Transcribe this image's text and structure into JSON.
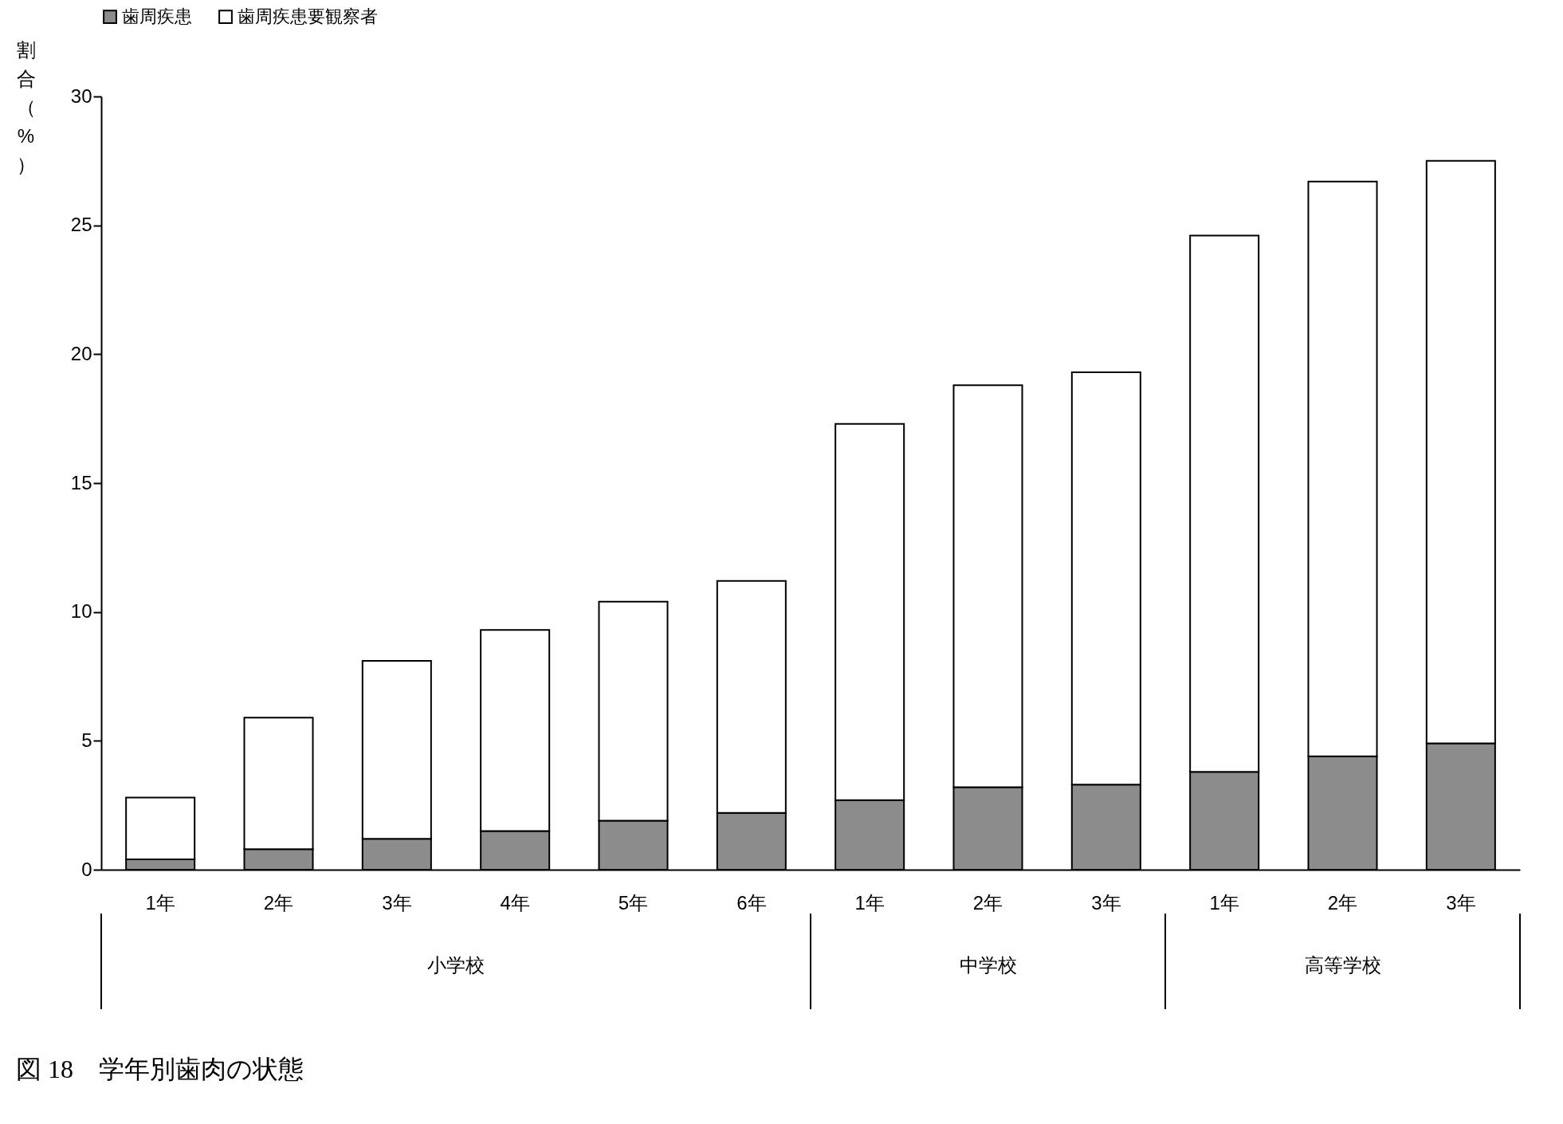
{
  "chart_data": {
    "type": "bar",
    "stacked": true,
    "title": "図 18　学年別歯肉の状態",
    "ylabel": "割合（%）",
    "categories": [
      "1年",
      "2年",
      "3年",
      "4年",
      "5年",
      "6年",
      "1年",
      "2年",
      "3年",
      "1年",
      "2年",
      "3年"
    ],
    "series": [
      {
        "name": "歯周疾患",
        "color": "#8c8c8c",
        "values": [
          0.4,
          0.8,
          1.2,
          1.5,
          1.9,
          2.2,
          2.7,
          3.2,
          3.3,
          3.8,
          4.4,
          4.9
        ]
      },
      {
        "name": "歯周疾患要観察者",
        "color": "#ffffff",
        "values": [
          2.4,
          5.1,
          6.9,
          7.8,
          8.5,
          9.0,
          14.6,
          15.6,
          16.0,
          20.8,
          22.3,
          22.6
        ]
      }
    ],
    "ylim": [
      0,
      30
    ],
    "yticks": [
      0,
      5,
      10,
      15,
      20,
      25,
      30
    ],
    "grid": false,
    "legend": "top",
    "annotations": [
      "小学校",
      "中学校",
      "高等学校"
    ]
  }
}
